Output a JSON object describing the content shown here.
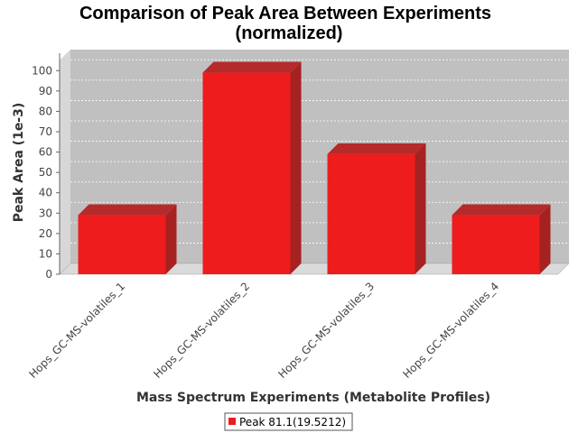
{
  "chart_data": {
    "type": "bar",
    "title_line1": "Comparison of Peak Area Between Experiments",
    "title_line2": "(normalized)",
    "xlabel": "Mass Spectrum Experiments (Metabolite Profiles)",
    "ylabel": "Peak Area (1e-3)",
    "categories": [
      "Hops_GC-MS-volatiles_1",
      "Hops_GC-MS-volatiles_2",
      "Hops_GC-MS-volatiles_3",
      "Hops_GC-MS-volatiles_4"
    ],
    "series": [
      {
        "name": "Peak 81.1(19.5212)",
        "values": [
          29,
          99,
          59,
          29
        ],
        "color": "#ee1c1c"
      }
    ],
    "ylim": [
      0,
      105
    ],
    "yticks": [
      "0",
      "10",
      "20",
      "30",
      "40",
      "50",
      "60",
      "70",
      "80",
      "90",
      "100"
    ],
    "grid": true,
    "legend": "bottom"
  }
}
